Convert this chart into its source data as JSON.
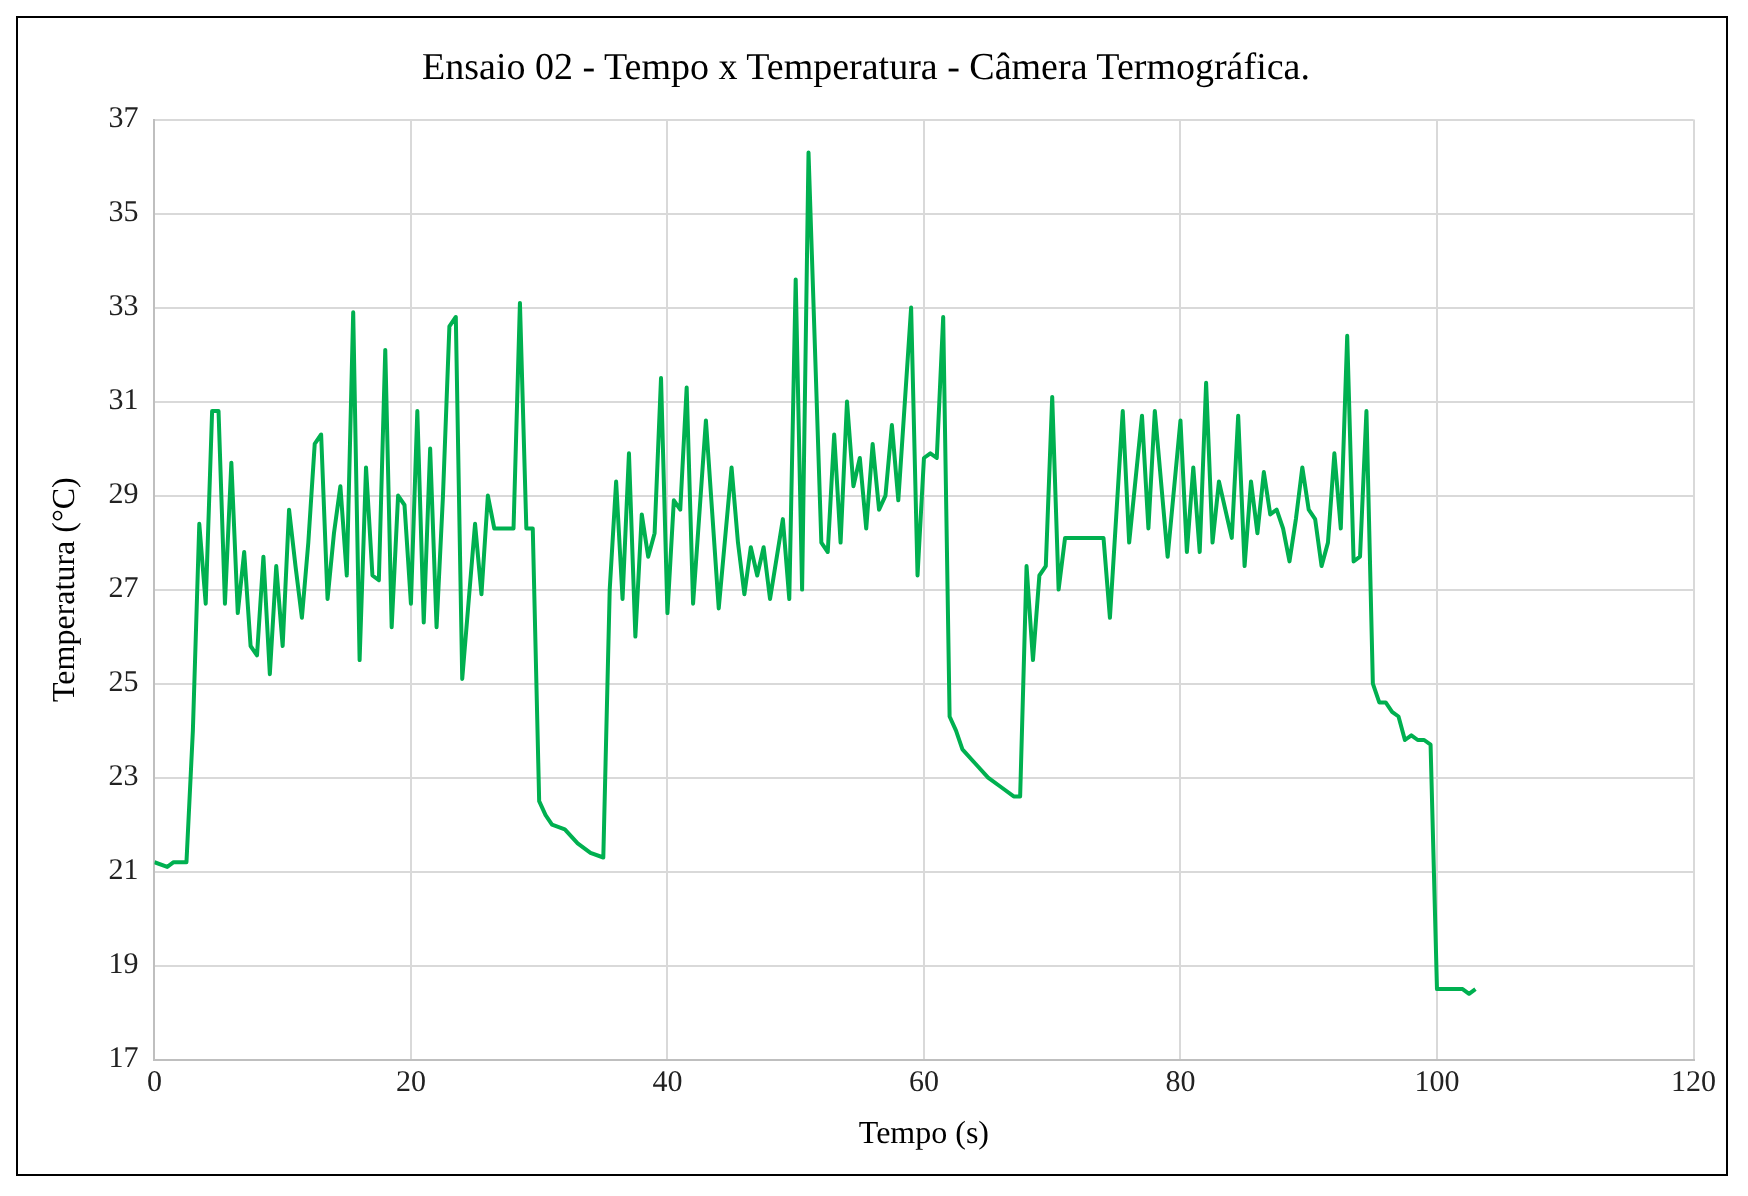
{
  "chart_data": {
    "type": "line",
    "title": "Ensaio 02 - Tempo x Temperatura - Câmera Termográfica.",
    "xlabel": "Tempo (s)",
    "ylabel": "Temperatura (°C)",
    "x": [
      0,
      1,
      1.5,
      2.5,
      3,
      3.5,
      4,
      4.5,
      5,
      5.5,
      6,
      6.5,
      7,
      7.5,
      8,
      8.5,
      9,
      9.5,
      10,
      10.5,
      11,
      11.5,
      12,
      12.5,
      13,
      13.5,
      14,
      14.5,
      15,
      15.5,
      16,
      16.5,
      17,
      17.5,
      18,
      18.5,
      19,
      19.5,
      20,
      20.5,
      21,
      21.5,
      22,
      22.5,
      23,
      23.5,
      24,
      25,
      25.5,
      26,
      26.5,
      28,
      28.5,
      29,
      29.5,
      30,
      30.5,
      31,
      32,
      33,
      34,
      35,
      35.5,
      36,
      36.5,
      37,
      37.5,
      38,
      38.5,
      39,
      39.5,
      40,
      40.5,
      41,
      41.5,
      42,
      43,
      44,
      45,
      45.5,
      46,
      46.5,
      47,
      47.5,
      48,
      49,
      49.5,
      50,
      50.5,
      51,
      52,
      52.5,
      53,
      53.5,
      54,
      54.5,
      55,
      55.5,
      56,
      56.5,
      57,
      57.5,
      58,
      59,
      59.5,
      60,
      60.5,
      61,
      61.5,
      62,
      62.5,
      63,
      64,
      65,
      66,
      67,
      67.5,
      68,
      68.5,
      69,
      69.5,
      70,
      70.5,
      71,
      74,
      74.5,
      75.5,
      76,
      77,
      77.5,
      78,
      79,
      80,
      80.5,
      81,
      81.5,
      82,
      82.5,
      83,
      84,
      84.5,
      85,
      85.5,
      86,
      86.5,
      87,
      87.5,
      88,
      88.5,
      89,
      89.5,
      90,
      90.5,
      91,
      91.5,
      92,
      92.5,
      93,
      93.5,
      94,
      94.5,
      95,
      95.5,
      96,
      96.5,
      97,
      97.5,
      98,
      98.5,
      99,
      99.5,
      100,
      101,
      102,
      102.5,
      103
    ],
    "series": [
      {
        "color": "#00b050",
        "values": [
          21.2,
          21.1,
          21.2,
          21.2,
          24,
          28.4,
          26.7,
          30.8,
          30.8,
          26.7,
          29.7,
          26.5,
          27.8,
          25.8,
          25.6,
          27.7,
          25.2,
          27.5,
          25.8,
          28.7,
          27.5,
          26.4,
          28,
          30.1,
          30.3,
          26.8,
          28.2,
          29.2,
          27.3,
          32.9,
          25.5,
          29.6,
          27.3,
          27.2,
          32.1,
          26.2,
          29,
          28.8,
          26.7,
          30.8,
          26.3,
          30,
          26.2,
          29,
          32.6,
          32.8,
          25.1,
          28.4,
          26.9,
          29,
          28.3,
          28.3,
          33.1,
          28.3,
          28.3,
          22.5,
          22.2,
          22,
          21.9,
          21.6,
          21.4,
          21.3,
          27,
          29.3,
          26.8,
          29.9,
          26,
          28.6,
          27.7,
          28.2,
          31.5,
          26.5,
          28.9,
          28.7,
          31.3,
          26.7,
          30.6,
          26.6,
          29.6,
          28,
          26.9,
          27.9,
          27.3,
          27.9,
          26.8,
          28.5,
          26.8,
          33.6,
          27,
          36.3,
          28,
          27.8,
          30.3,
          28,
          31,
          29.2,
          29.8,
          28.3,
          30.1,
          28.7,
          29,
          30.5,
          28.9,
          33,
          27.3,
          29.8,
          29.9,
          29.8,
          32.8,
          24.3,
          24,
          23.6,
          23.3,
          23,
          22.8,
          22.6,
          22.6,
          27.5,
          25.5,
          27.3,
          27.5,
          31.1,
          27,
          28.1,
          28.1,
          26.4,
          30.8,
          28,
          30.7,
          28.3,
          30.8,
          27.7,
          30.6,
          27.8,
          29.6,
          27.8,
          31.4,
          28,
          29.3,
          28.1,
          30.7,
          27.5,
          29.3,
          28.2,
          29.5,
          28.6,
          28.7,
          28.3,
          27.6,
          28.5,
          29.6,
          28.7,
          28.5,
          27.5,
          28,
          29.9,
          28.3,
          32.4,
          27.6,
          27.7,
          30.8,
          25,
          24.6,
          24.6,
          24.4,
          24.3,
          23.8,
          23.9,
          23.8,
          23.8,
          23.7,
          18.5,
          18.5,
          18.5,
          18.4,
          18.5
        ]
      }
    ],
    "xlim": [
      0,
      120
    ],
    "xticks": [
      0,
      20,
      40,
      60,
      80,
      100,
      120
    ],
    "ylim": [
      17,
      37
    ],
    "yticks": [
      17,
      19,
      21,
      23,
      25,
      27,
      29,
      31,
      33,
      35,
      37
    ],
    "grid": true,
    "legend": false,
    "marker": "none",
    "line_style": "solid"
  }
}
